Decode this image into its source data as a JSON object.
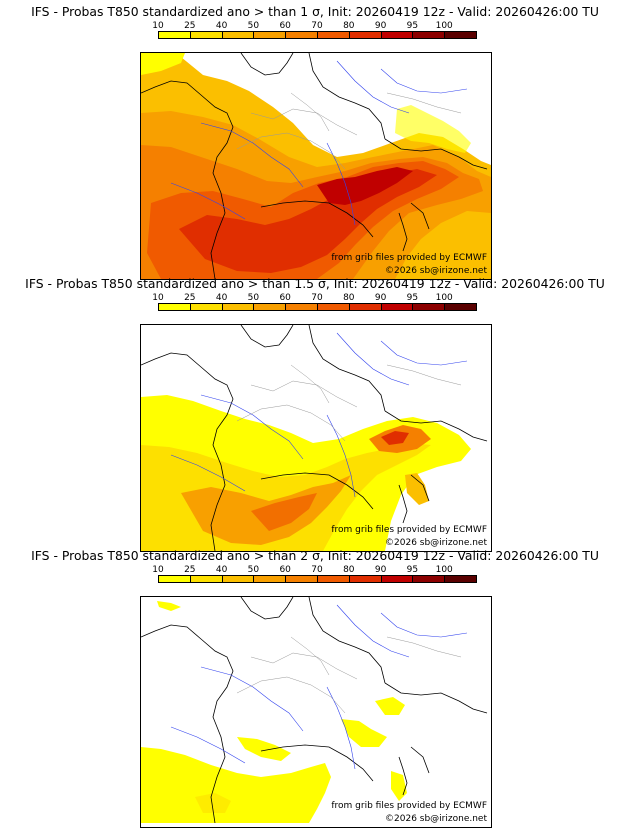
{
  "colorbar": {
    "ticks": [
      "10",
      "25",
      "40",
      "50",
      "60",
      "70",
      "80",
      "90",
      "95",
      "100"
    ],
    "colors": [
      "#ffff00",
      "#fde000",
      "#fbbf00",
      "#f8a000",
      "#f58000",
      "#f05a00",
      "#e02e00",
      "#c00000",
      "#8c0000",
      "#5a0000"
    ]
  },
  "credit": {
    "source": "from grib files provided by ECMWF",
    "copyright": "©2026 sb@irizone.net"
  },
  "panels": [
    {
      "title": "IFS - Probas T850  standardized ano > than 1 σ, Init: 20260419 12z - Valid: 20260426:00 TU",
      "threshold_sigma": 1
    },
    {
      "title": "IFS - Probas T850  standardized ano > than 1.5 σ, Init: 20260419 12z - Valid: 20260426:00 TU",
      "threshold_sigma": 1.5
    },
    {
      "title": "IFS - Probas T850  standardized ano > than 2 σ, Init: 20260419 12z - Valid: 20260426:00 TU",
      "threshold_sigma": 2
    }
  ]
}
